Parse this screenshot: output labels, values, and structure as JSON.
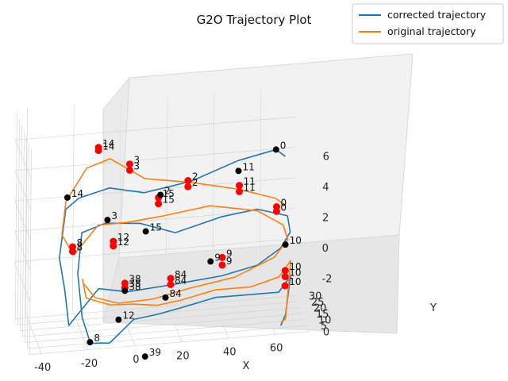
{
  "chart_data": {
    "type": "line",
    "projection": "3d",
    "title": "G2O Trajectory Plot",
    "xlabel": "X",
    "ylabel": "Y",
    "zlabel": "",
    "xlim": [
      -45,
      75
    ],
    "ylim": [
      0,
      33
    ],
    "zlim": [
      -5.5,
      8
    ],
    "x_ticks": [
      -40,
      -20,
      0,
      20,
      40,
      60
    ],
    "y_ticks": [
      0,
      5,
      10,
      15,
      20,
      25,
      30
    ],
    "z_ticks": [
      -2,
      0,
      2,
      4,
      6
    ],
    "grid": true,
    "legend_position": "top-right",
    "colors": {
      "corrected": "#1f77b4",
      "original": "#ff7f0e",
      "vertex_corrected": "#000000",
      "vertex_original": "#ff0000"
    },
    "series": [
      {
        "name": "corrected trajectory",
        "points": [
          [
            70,
            30,
            3.7
          ],
          [
            66,
            30,
            4.2
          ],
          [
            50,
            31,
            3.6
          ],
          [
            30,
            31,
            2.5
          ],
          [
            10,
            31,
            2.0
          ],
          [
            -5,
            31,
            2.5
          ],
          [
            -18,
            31,
            2.0
          ],
          [
            -24,
            29,
            1.5
          ],
          [
            -27,
            27,
            -1.5
          ],
          [
            -25,
            25,
            -3.5
          ],
          [
            -24,
            21,
            -5.5
          ],
          [
            -12,
            18,
            -3.0
          ],
          [
            0,
            16,
            -3.2
          ],
          [
            20,
            14,
            -2.8
          ],
          [
            40,
            14,
            -2.5
          ],
          [
            55,
            14,
            -2.0
          ],
          [
            65,
            14,
            -1.0
          ],
          [
            69,
            14,
            0.0
          ],
          [
            68,
            15,
            1.0
          ],
          [
            55,
            15,
            1.6
          ],
          [
            40,
            15,
            1.3
          ],
          [
            20,
            15,
            0.5
          ],
          [
            5,
            15,
            1.3
          ],
          [
            -10,
            15,
            1.5
          ],
          [
            -20,
            15,
            1.0
          ],
          [
            -22,
            13,
            -1.5
          ],
          [
            -21,
            8,
            -4.0
          ],
          [
            -18,
            5,
            -5.5
          ],
          [
            -10,
            4,
            -5.5
          ],
          [
            0,
            3,
            -4.0
          ],
          [
            10,
            3,
            -3.8
          ],
          [
            20,
            3,
            -3.5
          ],
          [
            35,
            3,
            -3.0
          ],
          [
            50,
            3,
            -3.0
          ],
          [
            62,
            3,
            -3.0
          ],
          [
            67,
            3,
            -2.0
          ],
          [
            65,
            3,
            -4.5
          ],
          [
            63,
            3,
            -5.2
          ]
        ]
      },
      {
        "name": "original trajectory",
        "points": [
          [
            70,
            30,
            0.5
          ],
          [
            66,
            30,
            1.0
          ],
          [
            50,
            30,
            1.8
          ],
          [
            30,
            30,
            2.5
          ],
          [
            10,
            30,
            3.0
          ],
          [
            -5,
            30,
            4.5
          ],
          [
            -15,
            30,
            4.0
          ],
          [
            -24,
            29,
            2.0
          ],
          [
            -26,
            27,
            0.0
          ],
          [
            -24,
            25,
            -0.5
          ],
          [
            -22,
            22,
            -1.0
          ],
          [
            -12,
            20,
            1.0
          ],
          [
            0,
            18,
            1.2
          ],
          [
            15,
            17,
            1.5
          ],
          [
            35,
            16,
            2.0
          ],
          [
            55,
            15,
            1.5
          ],
          [
            66,
            14,
            0.5
          ],
          [
            68,
            14,
            -0.5
          ],
          [
            62,
            13,
            -1.5
          ],
          [
            45,
            12,
            -2.5
          ],
          [
            25,
            12,
            -3.0
          ],
          [
            10,
            12,
            -3.5
          ],
          [
            -5,
            11,
            -3.5
          ],
          [
            -15,
            11,
            -3.0
          ],
          [
            -20,
            11,
            -2.0
          ],
          [
            -21,
            8,
            -1.5
          ],
          [
            -20,
            5,
            -2.5
          ],
          [
            -10,
            4,
            -3.0
          ],
          [
            0,
            3,
            -3.0
          ],
          [
            10,
            3,
            -3.2
          ],
          [
            20,
            3,
            -3.0
          ],
          [
            35,
            3,
            -2.5
          ],
          [
            50,
            3,
            -2.5
          ],
          [
            62,
            3,
            -2.0
          ],
          [
            67,
            3,
            -1.0
          ],
          [
            65,
            3,
            -4.8
          ],
          [
            63,
            3,
            -5.0
          ]
        ]
      }
    ],
    "vertices_corrected": [
      {
        "label": "0",
        "p": [
          66,
          30,
          4.2
        ]
      },
      {
        "label": "11",
        "p": [
          50,
          30,
          3.0
        ]
      },
      {
        "label": "2",
        "p": [
          15,
          22,
          2.5
        ]
      },
      {
        "label": "15",
        "p": [
          8,
          18,
          0.5
        ]
      },
      {
        "label": "3",
        "p": [
          -8,
          20,
          1.3
        ]
      },
      {
        "label": "14",
        "p": [
          -24,
          26,
          2.5
        ]
      },
      {
        "label": "9",
        "p": [
          35,
          14,
          -1.5
        ]
      },
      {
        "label": "10",
        "p": [
          67,
          14,
          -0.8
        ]
      },
      {
        "label": "84",
        "p": [
          15,
          10,
          -3.3
        ]
      },
      {
        "label": "12",
        "p": [
          -5,
          10,
          -4.5
        ]
      },
      {
        "label": "38",
        "p": [
          -2,
          12,
          -2.8
        ]
      },
      {
        "label": "8",
        "p": [
          -18,
          6,
          -5.5
        ]
      },
      {
        "label": "39",
        "p": [
          5,
          3,
          -6.5
        ]
      }
    ],
    "vertices_original": [
      {
        "label": "0",
        "p": [
          66,
          28,
          0.6
        ]
      },
      {
        "label": "0",
        "p": [
          66,
          28,
          0.3
        ]
      },
      {
        "label": "11",
        "p": [
          50,
          28,
          2.2
        ]
      },
      {
        "label": "11",
        "p": [
          50,
          28,
          1.8
        ]
      },
      {
        "label": "2",
        "p": [
          28,
          28,
          2.8
        ]
      },
      {
        "label": "2",
        "p": [
          28,
          28,
          2.4
        ]
      },
      {
        "label": "3",
        "p": [
          3,
          28,
          4.2
        ]
      },
      {
        "label": "3",
        "p": [
          3,
          28,
          3.8
        ]
      },
      {
        "label": "14",
        "p": [
          -10,
          30,
          5.3
        ]
      },
      {
        "label": "14",
        "p": [
          -10,
          30,
          5.1
        ]
      },
      {
        "label": "15",
        "p": [
          15,
          26,
          2.0
        ]
      },
      {
        "label": "15",
        "p": [
          15,
          26,
          1.6
        ]
      },
      {
        "label": "8",
        "p": [
          -22,
          24,
          -0.6
        ]
      },
      {
        "label": "8",
        "p": [
          -22,
          24,
          -0.9
        ]
      },
      {
        "label": "12",
        "p": [
          -5,
          22,
          -0.3
        ]
      },
      {
        "label": "12",
        "p": [
          -5,
          22,
          -0.6
        ]
      },
      {
        "label": "9",
        "p": [
          40,
          14,
          -1.3
        ]
      },
      {
        "label": "9",
        "p": [
          40,
          14,
          -1.8
        ]
      },
      {
        "label": "84",
        "p": [
          18,
          14,
          -2.4
        ]
      },
      {
        "label": "84",
        "p": [
          18,
          14,
          -2.8
        ]
      },
      {
        "label": "38",
        "p": [
          -2,
          12,
          -2.3
        ]
      },
      {
        "label": "38",
        "p": [
          -2,
          12,
          -2.6
        ]
      },
      {
        "label": "10",
        "p": [
          67,
          14,
          -2.5
        ]
      },
      {
        "label": "10",
        "p": [
          67,
          14,
          -2.9
        ]
      },
      {
        "label": "10",
        "p": [
          67,
          14,
          -3.5
        ]
      }
    ]
  }
}
